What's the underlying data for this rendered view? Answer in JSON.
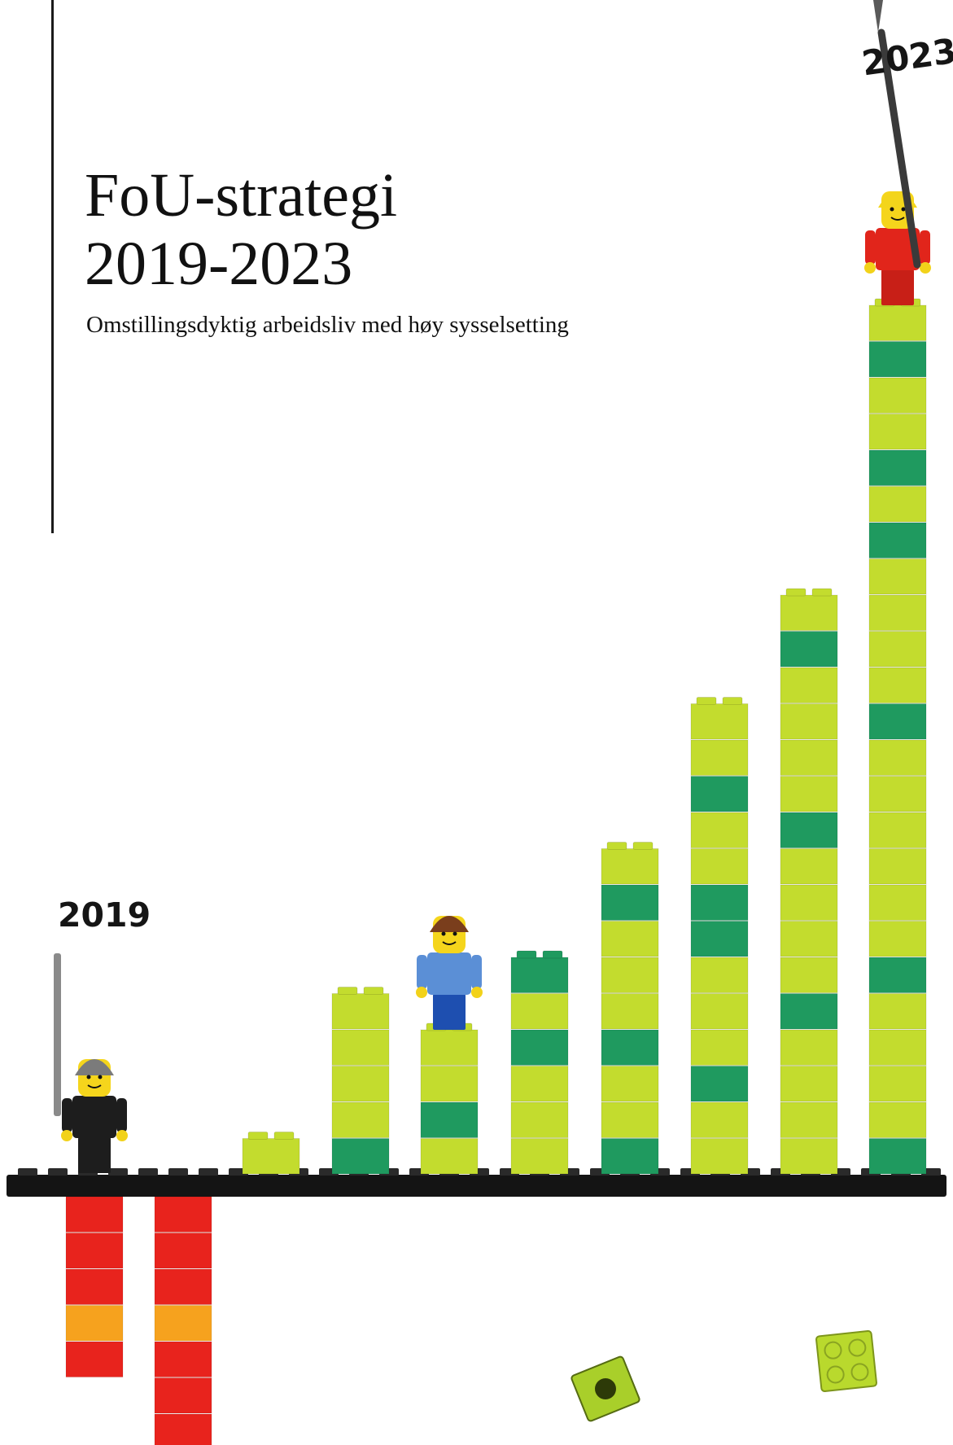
{
  "cover": {
    "title_line1": "FoU-strategi",
    "title_line2": "2019-2023",
    "subtitle": "Omstillingsdyktig arbeidsliv med høy sysselsetting",
    "year_start": "2019",
    "year_end": "2023"
  },
  "chart_data": {
    "type": "bar",
    "categories": [],
    "values_in_bricks": [
      -5,
      -7,
      1,
      5,
      4,
      6,
      9,
      13,
      16,
      24
    ],
    "negative_color": "#e8231d",
    "negative_accent_color": "#f6a21e",
    "positive_color": "#c3dc2e",
    "positive_accent_color": "#1f9a5f",
    "baseplate_color": "#141414"
  },
  "figures": [
    {
      "name": "firefighter-minifigure",
      "stands_on_bar": 0,
      "torso": "#1d1d1d",
      "legs": "#1d1d1d",
      "hair": "#7b7b7b",
      "holds": "sword"
    },
    {
      "name": "girl-minifigure",
      "stands_on_bar": 4,
      "torso": "#5b8fd6",
      "legs": "#1e4fb0",
      "hair": "#7a3e1c",
      "holds": "none"
    },
    {
      "name": "red-minifigure",
      "stands_on_bar": 9,
      "torso": "#e1251b",
      "legs": "#c81f17",
      "hair": "#f3d51b",
      "holds": "flag-pole"
    }
  ],
  "loose_bricks": [
    {
      "name": "loose-brick-tilted",
      "color": "#a9cf2a"
    },
    {
      "name": "loose-brick-square",
      "color": "#b9d92d"
    }
  ]
}
